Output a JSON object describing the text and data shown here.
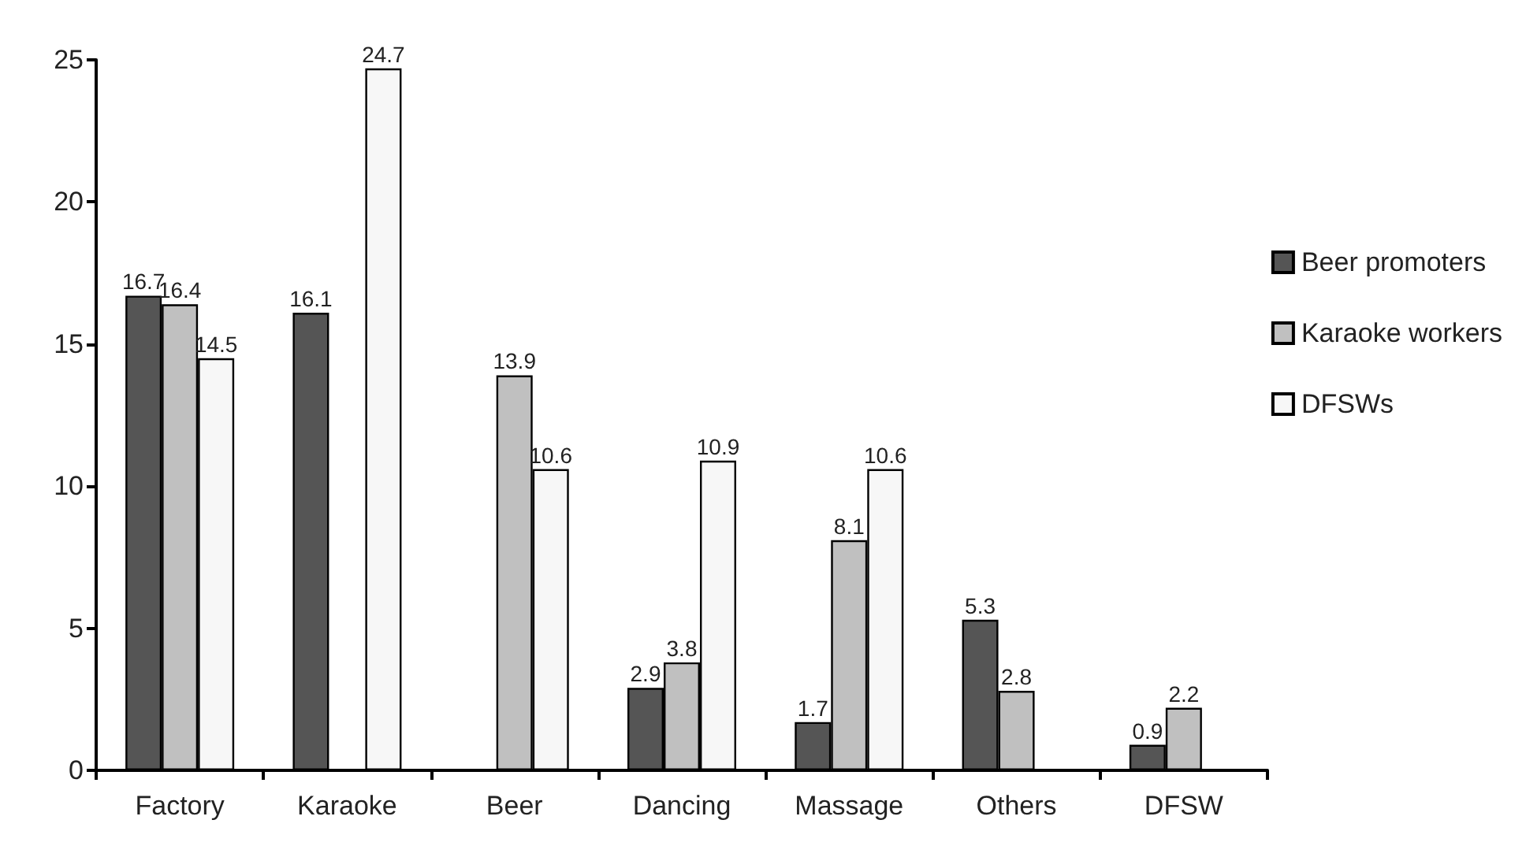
{
  "chart_data": {
    "type": "bar",
    "categories": [
      "Factory",
      "Karaoke",
      "Beer",
      "Dancing",
      "Massage",
      "Others",
      "DFSW"
    ],
    "series": [
      {
        "name": "Beer promoters",
        "color": "#555555",
        "values": [
          16.7,
          16.1,
          null,
          2.9,
          1.7,
          5.3,
          0.9
        ]
      },
      {
        "name": "Karaoke workers",
        "color": "#c0c0c0",
        "values": [
          16.4,
          null,
          13.9,
          3.8,
          8.1,
          2.8,
          2.2
        ]
      },
      {
        "name": "DFSWs",
        "color": "#f7f7f7",
        "values": [
          14.5,
          24.7,
          10.6,
          10.9,
          10.6,
          null,
          null
        ]
      }
    ],
    "ylim": [
      0,
      25
    ],
    "yticks": [
      0,
      5,
      10,
      15,
      20,
      25
    ],
    "grid": false,
    "legend": "right",
    "data_labels": true
  }
}
